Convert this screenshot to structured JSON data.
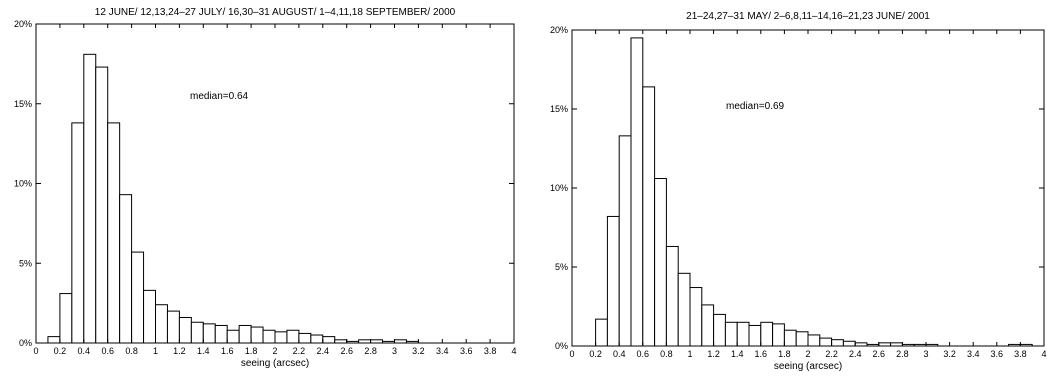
{
  "chart_data": [
    {
      "type": "bar",
      "title": "12 JUNE/ 12,13,24–27 JULY/ 16,30–31 AUGUST/ 1–4,11,18 SEPTEMBER/ 2000",
      "xlabel": "seeing (arcsec)",
      "ylabel": "",
      "xlim": [
        0,
        4
      ],
      "ylim": [
        0,
        20
      ],
      "bin_width": 0.1,
      "x_ticks": [
        "0",
        "0.2",
        "0.4",
        "0.6",
        "0.8",
        "1",
        "1.2",
        "1.4",
        "1.6",
        "1.8",
        "2",
        "2.2",
        "2.4",
        "2.6",
        "2.8",
        "3",
        "3.2",
        "3.4",
        "3.6",
        "3.8",
        "4"
      ],
      "y_ticks": [
        "0%",
        "5%",
        "10%",
        "15%",
        "20%"
      ],
      "annotation": "median=0.64",
      "x": [
        0.1,
        0.2,
        0.3,
        0.4,
        0.5,
        0.6,
        0.7,
        0.8,
        0.9,
        1.0,
        1.1,
        1.2,
        1.3,
        1.4,
        1.5,
        1.6,
        1.7,
        1.8,
        1.9,
        2.0,
        2.1,
        2.2,
        2.3,
        2.4,
        2.5,
        2.6,
        2.7,
        2.8,
        2.9,
        3.0,
        3.1
      ],
      "values": [
        0.4,
        3.1,
        13.8,
        18.1,
        17.3,
        13.8,
        9.3,
        5.7,
        3.3,
        2.4,
        2.0,
        1.6,
        1.3,
        1.2,
        1.1,
        0.8,
        1.1,
        1.0,
        0.8,
        0.7,
        0.8,
        0.6,
        0.5,
        0.4,
        0.2,
        0.1,
        0.2,
        0.2,
        0.1,
        0.2,
        0.1
      ],
      "grid": false
    },
    {
      "type": "bar",
      "title": "21–24,27–31 MAY/ 2–6,8,11–14,16–21,23 JUNE/ 2001",
      "xlabel": "seeing (arcsec)",
      "ylabel": "",
      "xlim": [
        0,
        4
      ],
      "ylim": [
        0,
        20
      ],
      "bin_width": 0.1,
      "x_ticks": [
        "0",
        "0.2",
        "0.4",
        "0.6",
        "0.8",
        "1",
        "1.2",
        "1.4",
        "1.6",
        "1.8",
        "2",
        "2.2",
        "2.4",
        "2.6",
        "2.8",
        "3",
        "3.2",
        "3.4",
        "3.6",
        "3.8",
        "4"
      ],
      "y_ticks": [
        "0%",
        "5%",
        "10%",
        "15%",
        "20%"
      ],
      "annotation": "median=0.69",
      "x": [
        0.2,
        0.3,
        0.4,
        0.5,
        0.6,
        0.7,
        0.8,
        0.9,
        1.0,
        1.1,
        1.2,
        1.3,
        1.4,
        1.5,
        1.6,
        1.7,
        1.8,
        1.9,
        2.0,
        2.1,
        2.2,
        2.3,
        2.4,
        2.5,
        2.6,
        2.7,
        2.8,
        2.9,
        3.0,
        3.7,
        3.8
      ],
      "values": [
        1.7,
        8.2,
        13.3,
        19.5,
        16.4,
        10.6,
        6.3,
        4.6,
        3.7,
        2.6,
        2.0,
        1.5,
        1.5,
        1.3,
        1.5,
        1.4,
        1.0,
        0.9,
        0.7,
        0.5,
        0.4,
        0.3,
        0.2,
        0.1,
        0.2,
        0.2,
        0.1,
        0.1,
        0.1,
        0.1,
        0.1
      ],
      "grid": false
    }
  ]
}
